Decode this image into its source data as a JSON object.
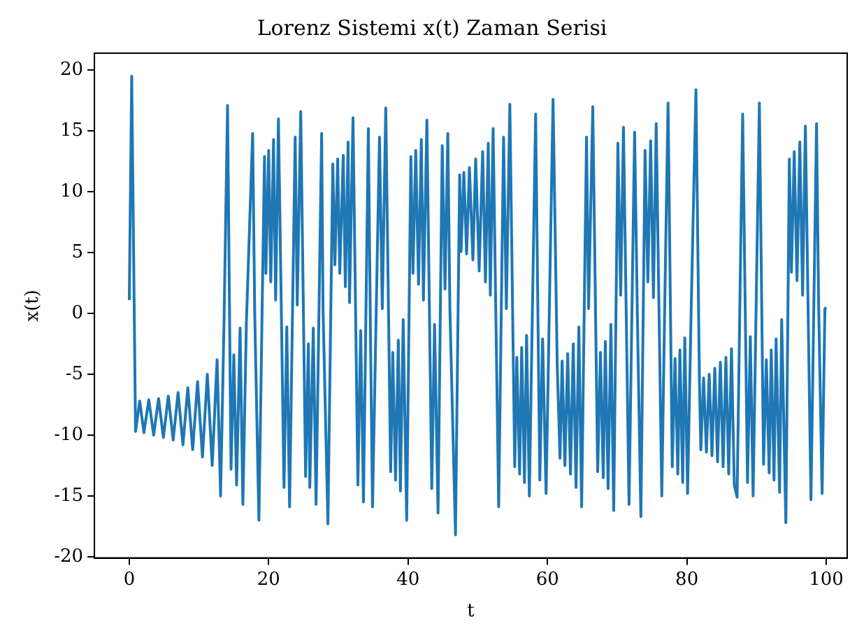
{
  "chart_data": {
    "type": "line",
    "title": "Lorenz Sistemi x(t) Zaman Serisi",
    "xlabel": "t",
    "ylabel": "x(t)",
    "xlim": [
      -5,
      103
    ],
    "ylim": [
      -20.1,
      21.4
    ],
    "xticks": [
      0,
      20,
      40,
      60,
      80,
      100
    ],
    "yticks": [
      -20,
      -15,
      -10,
      -5,
      0,
      5,
      10,
      15,
      20
    ],
    "grid": false,
    "legend": false,
    "marker": "none",
    "line_style": "solid",
    "series": [
      {
        "color": "#1f77b4",
        "x": [
          0,
          0.35,
          0.9,
          1.5,
          2.1,
          2.8,
          3.5,
          4.2,
          4.9,
          5.6,
          6.3,
          7,
          7.7,
          8.4,
          9.1,
          9.8,
          10.5,
          11.2,
          11.9,
          12.6,
          13.1,
          13.6,
          14.1,
          14.6,
          15.0,
          15.4,
          15.9,
          16.3,
          16.8,
          17.7,
          18.0,
          18.6,
          19.4,
          19.6,
          20.0,
          20.3,
          20.7,
          21.0,
          21.4,
          22.2,
          22.6,
          23.0,
          23.8,
          24.1,
          24.6,
          25.3,
          25.7,
          25.9,
          26.4,
          26.8,
          27.6,
          27.8,
          28.5,
          29.2,
          29.5,
          29.9,
          30.2,
          30.7,
          31.0,
          31.4,
          31.6,
          32.1,
          32.8,
          33.2,
          33.6,
          34.3,
          34.6,
          34.9,
          35.9,
          36.3,
          36.8,
          37.5,
          37.8,
          38.2,
          38.6,
          38.9,
          39.3,
          39.8,
          40.4,
          40.7,
          41.1,
          41.5,
          41.9,
          42.2,
          42.7,
          43.4,
          43.8,
          44.3,
          44.9,
          45.3,
          45.7,
          46.0,
          46.8,
          47.4,
          47.6,
          48.0,
          48.4,
          48.8,
          49.3,
          49.7,
          50.2,
          50.7,
          51.1,
          51.5,
          51.8,
          52.2,
          53.0,
          53.7,
          54.1,
          54.6,
          55.3,
          55.6,
          56.0,
          56.3,
          56.7,
          57.0,
          57.4,
          58.3,
          58.9,
          59.3,
          59.8,
          60.8,
          61.4,
          61.8,
          62.1,
          62.5,
          62.9,
          63.3,
          63.7,
          64.1,
          64.5,
          64.9,
          65.6,
          65.9,
          66.5,
          67.2,
          67.6,
          68.0,
          68.3,
          68.7,
          69.1,
          69.5,
          70.1,
          70.5,
          70.9,
          71.7,
          72.5,
          72.9,
          73.4,
          74.0,
          74.4,
          74.8,
          75.2,
          75.6,
          76.4,
          76.8,
          77.3,
          77.9,
          78.3,
          78.7,
          79.0,
          79.4,
          79.7,
          80.1,
          80.6,
          81.3,
          81.8,
          82.0,
          82.4,
          82.8,
          83.2,
          83.6,
          84.0,
          84.4,
          84.8,
          85.2,
          85.6,
          86.0,
          86.4,
          86.8,
          87.2,
          88.0,
          88.7,
          89.1,
          89.5,
          90.4,
          91.0,
          91.4,
          91.8,
          92.1,
          92.5,
          92.8,
          93.3,
          93.6,
          94.2,
          94.7,
          95.0,
          95.4,
          95.8,
          96.2,
          96.6,
          97.0,
          97.8,
          98.6,
          98.9,
          99.4,
          99.8,
          100
        ],
        "values": [
          1.1,
          19.5,
          -9.7,
          -7.2,
          -9.8,
          -7.1,
          -10,
          -7,
          -10.2,
          -6.8,
          -10.4,
          -6.5,
          -10.8,
          -6.1,
          -11.2,
          -5.6,
          -11.8,
          -5,
          -12.5,
          -3.8,
          -15,
          -0.5,
          17.1,
          -12.8,
          -3.4,
          -14.1,
          -1.2,
          -15.7,
          -0.8,
          14.8,
          0.0,
          -17.0,
          12.9,
          3.3,
          13.4,
          2.6,
          14.3,
          1.1,
          16.0,
          -14.3,
          -1.1,
          -15.9,
          14.5,
          0.7,
          16.6,
          -13.4,
          -2.5,
          -14.3,
          -1.2,
          -15.7,
          14.8,
          0.4,
          -17.3,
          12.3,
          4.0,
          12.7,
          3.3,
          13.0,
          2.2,
          14.1,
          0.9,
          16.1,
          -14.1,
          -1.4,
          -15.5,
          15.2,
          -1.4,
          -15.9,
          14.5,
          0.4,
          16.9,
          -13.0,
          -3.2,
          -13.7,
          -2.2,
          -14.6,
          -0.5,
          -17.0,
          12.9,
          3.3,
          13.4,
          2.4,
          14.3,
          1.1,
          15.9,
          -14.4,
          -0.9,
          -16.4,
          13.8,
          2.0,
          14.8,
          0.4,
          -18.2,
          11.4,
          5.1,
          11.6,
          4.9,
          12.0,
          4.4,
          12.7,
          3.5,
          13.3,
          2.6,
          14.0,
          1.5,
          15.2,
          -15.9,
          14.5,
          0.4,
          17.2,
          -12.6,
          -3.6,
          -13.2,
          -2.8,
          -13.9,
          -1.8,
          -15.0,
          16.4,
          -13.7,
          -2.1,
          -14.8,
          17.6,
          -4.3,
          -11.9,
          -3.9,
          -12.5,
          -3.3,
          -13.2,
          -2.5,
          -14.3,
          -1.1,
          -15.9,
          14.5,
          0.4,
          17.0,
          -13.0,
          -3.2,
          -13.5,
          -2.3,
          -14.4,
          -0.9,
          -16.2,
          14.0,
          1.5,
          15.3,
          -15.7,
          14.9,
          -0.3,
          -16.7,
          13.4,
          2.6,
          14.2,
          1.3,
          15.6,
          -15.0,
          -0.1,
          17.3,
          -12.6,
          -3.7,
          -13.2,
          -3.0,
          -13.9,
          -2.0,
          -14.8,
          -0.1,
          18.4,
          -5.6,
          -11.2,
          -5.3,
          -11.4,
          -5.0,
          -11.7,
          -4.5,
          -12.2,
          -4.0,
          -12.6,
          -3.6,
          -13.2,
          -2.9,
          -14.1,
          -15.1,
          16.4,
          -13.9,
          -1.9,
          -15.0,
          17.3,
          -12.4,
          -3.8,
          -13.1,
          -3.0,
          -13.7,
          -2.1,
          -14.7,
          -0.5,
          -17.2,
          12.7,
          3.4,
          13.3,
          2.7,
          14.1,
          1.5,
          15.4,
          -15.3,
          15.6,
          0.8,
          -14.8,
          0.4,
          0.5
        ]
      }
    ]
  }
}
